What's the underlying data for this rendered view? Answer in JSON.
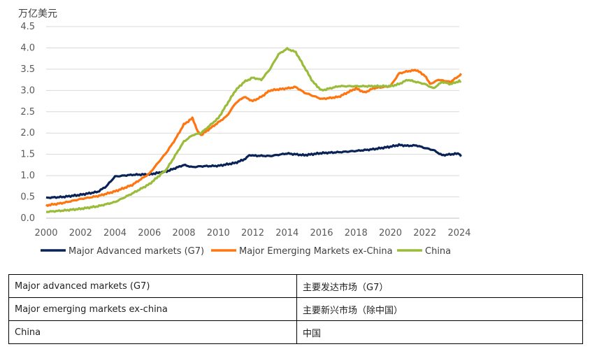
{
  "chart_data": {
    "type": "line",
    "unit_label": "万亿美元",
    "xlim": [
      2000,
      2024
    ],
    "ylim": [
      0,
      4.5
    ],
    "x_ticks": [
      "2000",
      "2002",
      "2004",
      "2006",
      "2008",
      "2010",
      "2012",
      "2014",
      "2016",
      "2018",
      "2020",
      "2022",
      "2024"
    ],
    "y_ticks": [
      "0.0",
      "0.5",
      "1.0",
      "1.5",
      "2.0",
      "2.5",
      "3.0",
      "3.5",
      "4.0",
      "4.5"
    ],
    "grid": true,
    "legend_position": "bottom",
    "series": [
      {
        "name": "Major Advanced markets (G7)",
        "color": "#0a2357",
        "points": [
          [
            2000,
            0.48
          ],
          [
            2001,
            0.5
          ],
          [
            2002,
            0.55
          ],
          [
            2003,
            0.62
          ],
          [
            2003.5,
            0.75
          ],
          [
            2004,
            0.98
          ],
          [
            2005,
            1.02
          ],
          [
            2006,
            1.03
          ],
          [
            2007,
            1.1
          ],
          [
            2008,
            1.25
          ],
          [
            2008.5,
            1.2
          ],
          [
            2009,
            1.22
          ],
          [
            2010,
            1.23
          ],
          [
            2011,
            1.3
          ],
          [
            2011.5,
            1.38
          ],
          [
            2011.8,
            1.48
          ],
          [
            2012,
            1.47
          ],
          [
            2013,
            1.46
          ],
          [
            2014,
            1.52
          ],
          [
            2015,
            1.48
          ],
          [
            2016,
            1.53
          ],
          [
            2017,
            1.55
          ],
          [
            2018,
            1.58
          ],
          [
            2019,
            1.62
          ],
          [
            2020,
            1.68
          ],
          [
            2020.5,
            1.72
          ],
          [
            2021,
            1.7
          ],
          [
            2021.5,
            1.71
          ],
          [
            2022,
            1.65
          ],
          [
            2022.5,
            1.6
          ],
          [
            2023,
            1.48
          ],
          [
            2023.5,
            1.5
          ],
          [
            2024,
            1.52
          ],
          [
            2024.1,
            1.45
          ]
        ]
      },
      {
        "name": "Major Emerging Markets ex-China",
        "color": "#ff7510",
        "points": [
          [
            2000,
            0.3
          ],
          [
            2001,
            0.36
          ],
          [
            2002,
            0.45
          ],
          [
            2003,
            0.52
          ],
          [
            2004,
            0.63
          ],
          [
            2005,
            0.78
          ],
          [
            2006,
            1.05
          ],
          [
            2007,
            1.55
          ],
          [
            2007.5,
            1.85
          ],
          [
            2008,
            2.2
          ],
          [
            2008.5,
            2.35
          ],
          [
            2008.8,
            2.05
          ],
          [
            2009,
            1.95
          ],
          [
            2010,
            2.25
          ],
          [
            2010.5,
            2.4
          ],
          [
            2011,
            2.7
          ],
          [
            2011.5,
            2.85
          ],
          [
            2012,
            2.75
          ],
          [
            2012.5,
            2.85
          ],
          [
            2013,
            3.0
          ],
          [
            2014,
            3.05
          ],
          [
            2014.5,
            3.08
          ],
          [
            2015,
            2.95
          ],
          [
            2016,
            2.8
          ],
          [
            2017,
            2.85
          ],
          [
            2018,
            3.05
          ],
          [
            2018.5,
            2.95
          ],
          [
            2019,
            3.05
          ],
          [
            2020,
            3.1
          ],
          [
            2020.5,
            3.4
          ],
          [
            2021,
            3.45
          ],
          [
            2021.5,
            3.48
          ],
          [
            2022,
            3.35
          ],
          [
            2022.3,
            3.15
          ],
          [
            2022.8,
            3.25
          ],
          [
            2023.5,
            3.2
          ],
          [
            2024,
            3.35
          ],
          [
            2024.1,
            3.4
          ]
        ]
      },
      {
        "name": "China",
        "color": "#9bbb3a",
        "points": [
          [
            2000,
            0.15
          ],
          [
            2001,
            0.18
          ],
          [
            2002,
            0.22
          ],
          [
            2003,
            0.28
          ],
          [
            2004,
            0.38
          ],
          [
            2005,
            0.58
          ],
          [
            2006,
            0.8
          ],
          [
            2007,
            1.15
          ],
          [
            2008,
            1.8
          ],
          [
            2008.5,
            1.95
          ],
          [
            2009,
            2.0
          ],
          [
            2010,
            2.35
          ],
          [
            2011,
            3.0
          ],
          [
            2011.5,
            3.2
          ],
          [
            2012,
            3.3
          ],
          [
            2012.5,
            3.25
          ],
          [
            2013,
            3.5
          ],
          [
            2013.5,
            3.85
          ],
          [
            2014,
            3.98
          ],
          [
            2014.5,
            3.9
          ],
          [
            2015,
            3.55
          ],
          [
            2015.5,
            3.2
          ],
          [
            2016,
            3.0
          ],
          [
            2016.5,
            3.05
          ],
          [
            2017,
            3.1
          ],
          [
            2018,
            3.1
          ],
          [
            2019,
            3.1
          ],
          [
            2020,
            3.1
          ],
          [
            2020.5,
            3.15
          ],
          [
            2021,
            3.25
          ],
          [
            2022,
            3.15
          ],
          [
            2022.5,
            3.05
          ],
          [
            2023,
            3.2
          ],
          [
            2023.5,
            3.15
          ],
          [
            2024,
            3.22
          ],
          [
            2024.1,
            3.22
          ]
        ]
      }
    ]
  },
  "glossary": {
    "rows": [
      {
        "en": "Major advanced markets (G7)",
        "zh": "主要发达市场（G7）"
      },
      {
        "en": "Major emerging markets ex-china",
        "zh": "主要新兴市场（除中国）"
      },
      {
        "en": "China",
        "zh": "中国"
      }
    ]
  }
}
